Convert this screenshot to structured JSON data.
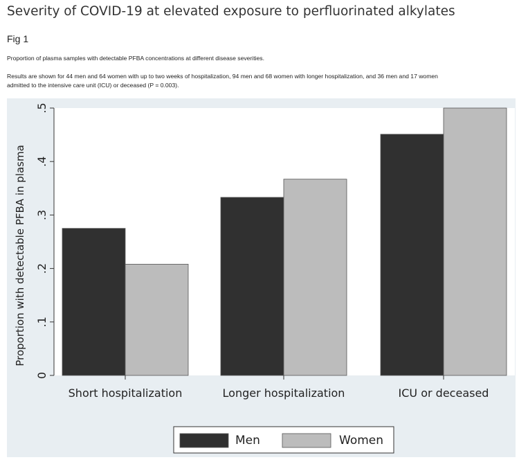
{
  "header": {
    "title": "Severity of COVID-19 at elevated exposure to perfluorinated alkylates",
    "fig_label": "Fig 1",
    "caption_line1": "Proportion of plasma samples with detectable PFBA concentrations at different disease severities.",
    "caption_line2": "Results are shown for 44 men and 64 women with up to two weeks of hospitalization, 94 men and 68 women with longer hospitalization, and 36 men and 17 women",
    "caption_line3": "admitted to the intensive care unit (ICU) or deceased (P = 0.003)."
  },
  "chart_data": {
    "type": "bar",
    "title": "",
    "xlabel": "",
    "ylabel": "Proportion with detectable PFBA in plasma",
    "categories": [
      "Short hospitalization",
      "Longer hospitalization",
      "ICU or deceased"
    ],
    "series": [
      {
        "name": "Men",
        "values": [
          0.275,
          0.333,
          0.451
        ],
        "color": "#303030"
      },
      {
        "name": "Women",
        "values": [
          0.208,
          0.367,
          0.5
        ],
        "color": "#bcbcbc"
      }
    ],
    "ylim": [
      0,
      0.5
    ],
    "yticks": [
      0,
      0.1,
      0.2,
      0.3,
      0.4,
      0.5
    ],
    "ytick_labels": [
      "0",
      ".1",
      ".2",
      ".3",
      ".4",
      ".5"
    ],
    "grid": false,
    "legend_position": "bottom-center",
    "colors": {
      "panel_background": "#e8eef2",
      "plot_background": "#ffffff",
      "bar_outline": "#555555"
    }
  }
}
